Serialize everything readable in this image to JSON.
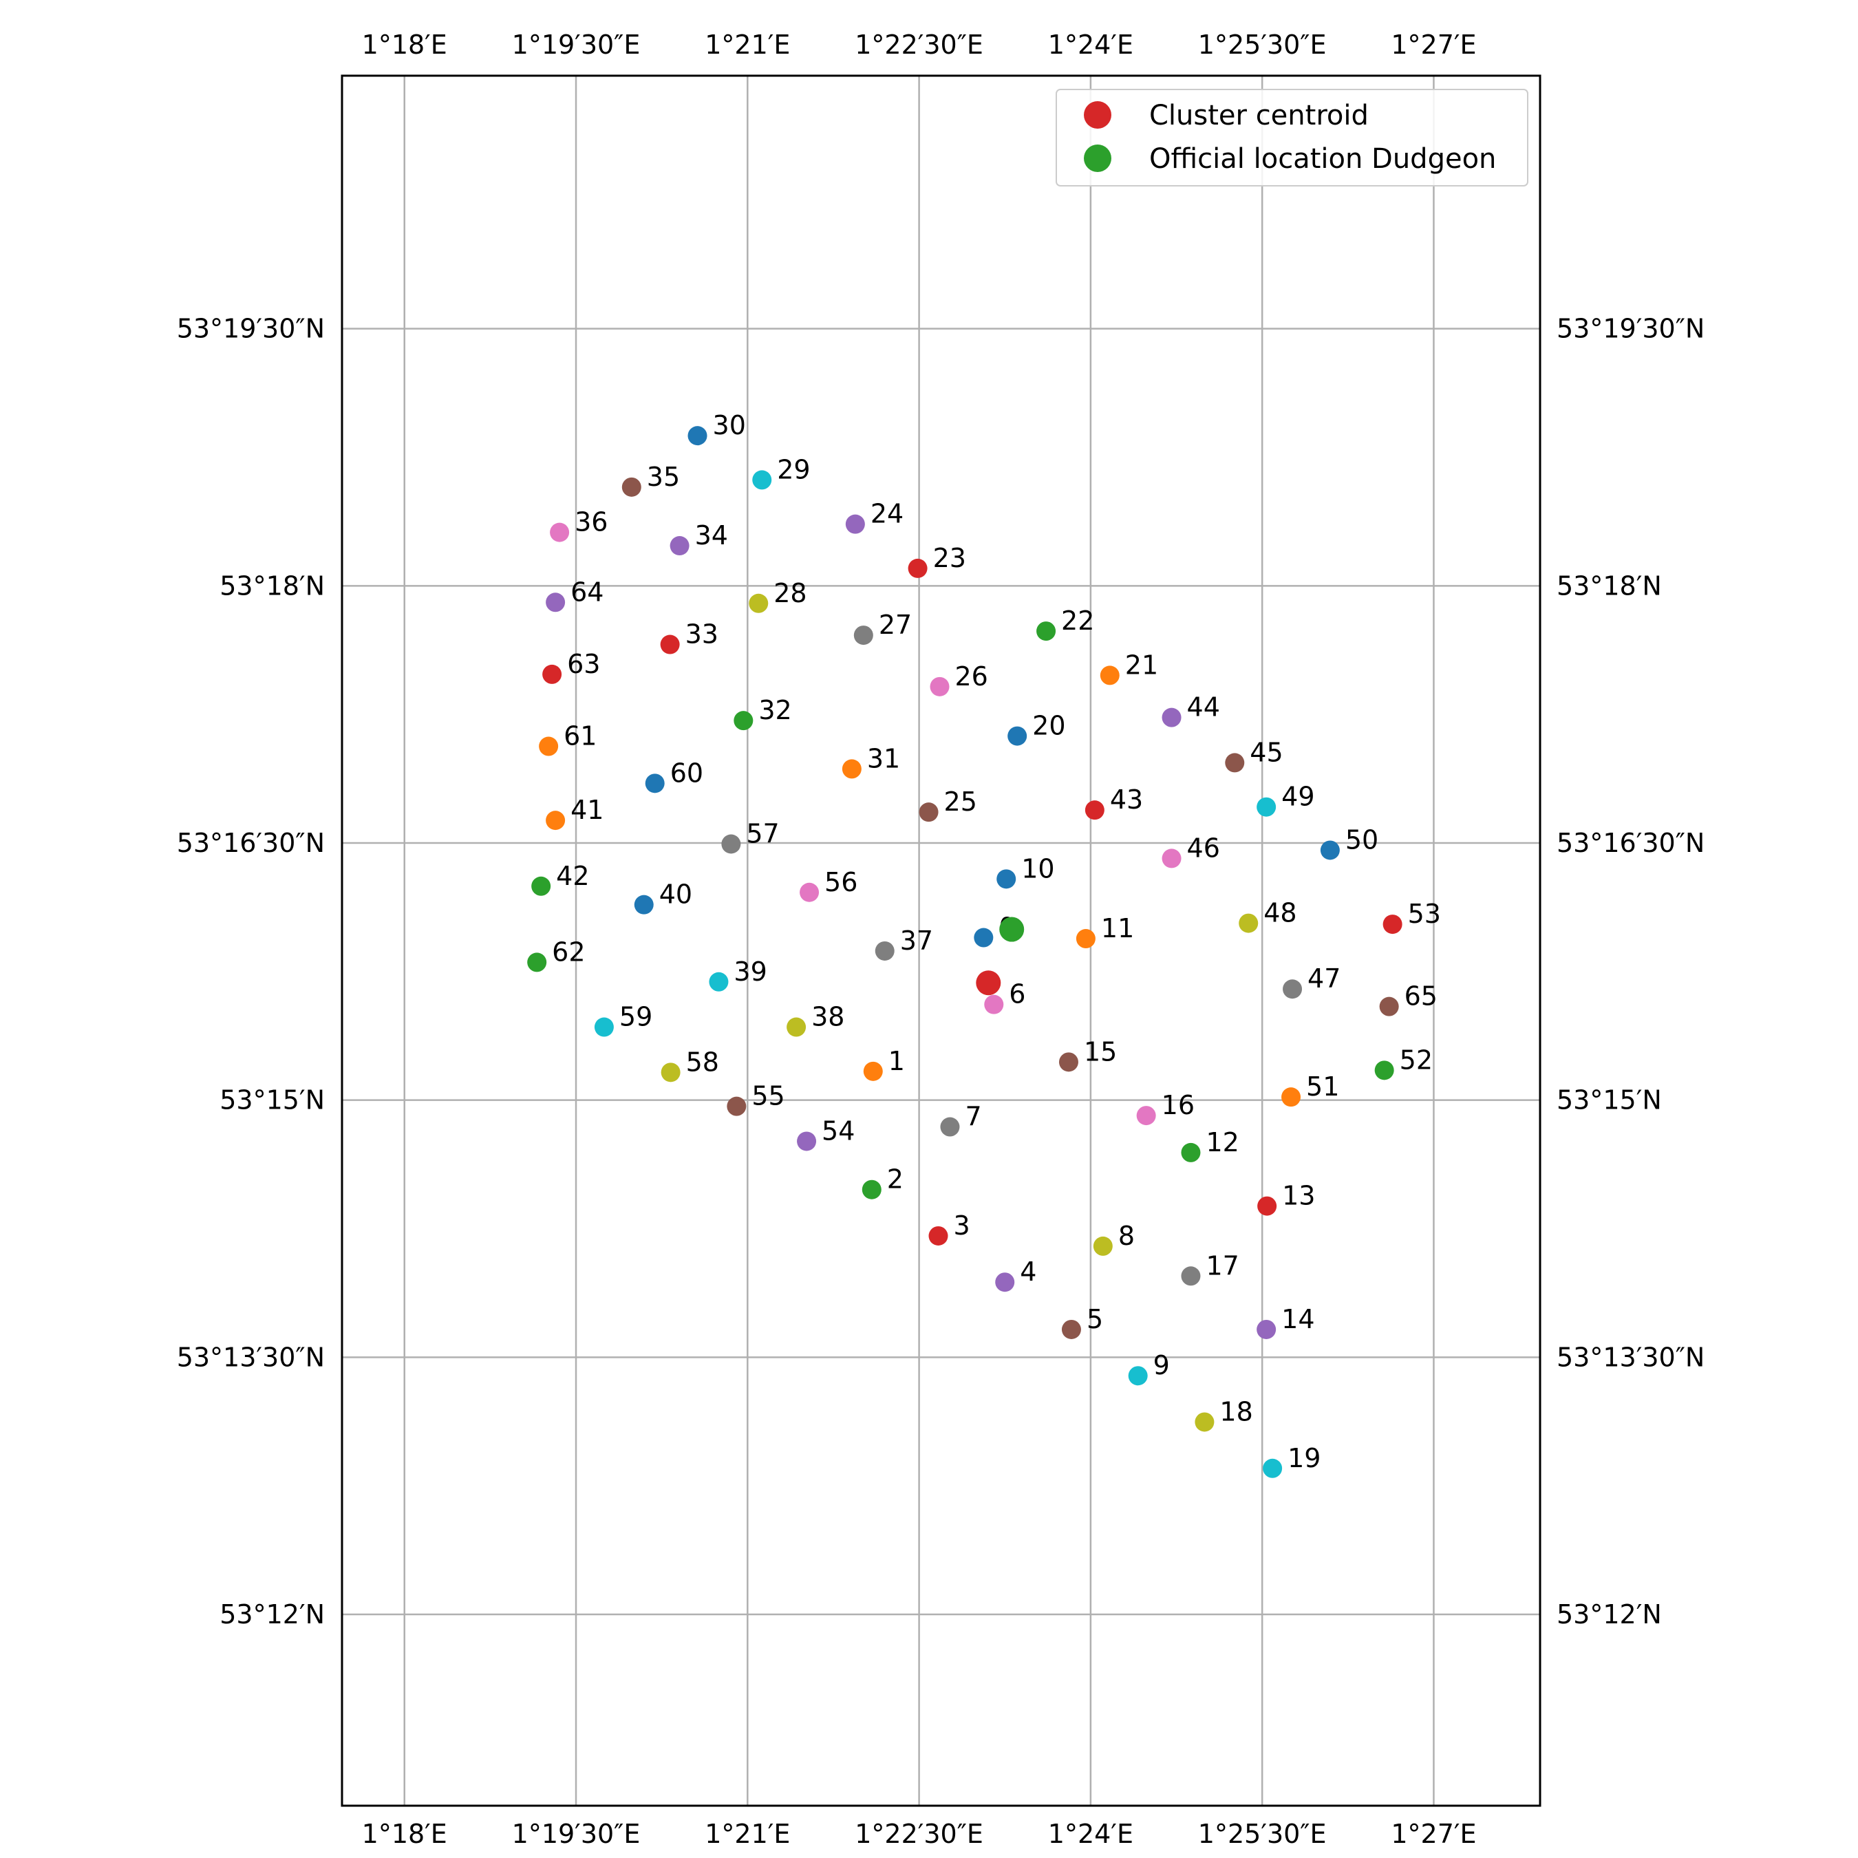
{
  "chart_data": {
    "type": "scatter",
    "xlim": [
      1.2909,
      1.4655
    ],
    "ylim": [
      53.1814,
      53.3496
    ],
    "grid": true,
    "x_ticks": [
      {
        "value": 1.3,
        "label": "1°18′E"
      },
      {
        "value": 1.325,
        "label": "1°19′30″E"
      },
      {
        "value": 1.35,
        "label": "1°21′E"
      },
      {
        "value": 1.375,
        "label": "1°22′30″E"
      },
      {
        "value": 1.4,
        "label": "1°24′E"
      },
      {
        "value": 1.425,
        "label": "1°25′30″E"
      },
      {
        "value": 1.45,
        "label": "1°27′E"
      }
    ],
    "y_ticks": [
      {
        "value": 53.2,
        "label": "53°12′N"
      },
      {
        "value": 53.225,
        "label": "53°13′30″N"
      },
      {
        "value": 53.25,
        "label": "53°15′N"
      },
      {
        "value": 53.275,
        "label": "53°16′30″N"
      },
      {
        "value": 53.3,
        "label": "53°18′N"
      },
      {
        "value": 53.325,
        "label": "53°19′30″N"
      }
    ],
    "legend": {
      "position": "top-right",
      "entries": [
        {
          "label": "Cluster centroid",
          "color": "#d62728"
        },
        {
          "label": "Official location Dudgeon",
          "color": "#2ca02c"
        }
      ]
    },
    "centroid": {
      "x": 1.3851,
      "y": 53.2614,
      "color": "#d62728"
    },
    "official_location": {
      "x": 1.3885,
      "y": 53.2666,
      "color": "#2ca02c"
    },
    "palette": [
      "#1f77b4",
      "#ff7f0e",
      "#2ca02c",
      "#d62728",
      "#9467bd",
      "#8c564b",
      "#e377c2",
      "#7f7f7f",
      "#bcbd22",
      "#17becf"
    ],
    "points": [
      {
        "id": "0",
        "x": 1.3844,
        "y": 53.2658
      },
      {
        "id": "1",
        "x": 1.3683,
        "y": 53.2528
      },
      {
        "id": "2",
        "x": 1.3681,
        "y": 53.2413
      },
      {
        "id": "3",
        "x": 1.3778,
        "y": 53.2368
      },
      {
        "id": "4",
        "x": 1.3875,
        "y": 53.2323
      },
      {
        "id": "5",
        "x": 1.3972,
        "y": 53.2277
      },
      {
        "id": "6",
        "x": 1.3859,
        "y": 53.2593
      },
      {
        "id": "7",
        "x": 1.3795,
        "y": 53.2474
      },
      {
        "id": "8",
        "x": 1.4018,
        "y": 53.2358
      },
      {
        "id": "9",
        "x": 1.4069,
        "y": 53.2232
      },
      {
        "id": "10",
        "x": 1.3877,
        "y": 53.2715
      },
      {
        "id": "11",
        "x": 1.3993,
        "y": 53.2657
      },
      {
        "id": "12",
        "x": 1.4146,
        "y": 53.2449
      },
      {
        "id": "13",
        "x": 1.4257,
        "y": 53.2397
      },
      {
        "id": "14",
        "x": 1.4256,
        "y": 53.2277
      },
      {
        "id": "15",
        "x": 1.3968,
        "y": 53.2537
      },
      {
        "id": "16",
        "x": 1.4081,
        "y": 53.2485
      },
      {
        "id": "17",
        "x": 1.4146,
        "y": 53.2329
      },
      {
        "id": "18",
        "x": 1.4166,
        "y": 53.2187
      },
      {
        "id": "19",
        "x": 1.4265,
        "y": 53.2142
      },
      {
        "id": "20",
        "x": 1.3893,
        "y": 53.2854
      },
      {
        "id": "21",
        "x": 1.4028,
        "y": 53.2913
      },
      {
        "id": "22",
        "x": 1.3935,
        "y": 53.2956
      },
      {
        "id": "23",
        "x": 1.3748,
        "y": 53.3017
      },
      {
        "id": "24",
        "x": 1.3657,
        "y": 53.306
      },
      {
        "id": "25",
        "x": 1.3764,
        "y": 53.278
      },
      {
        "id": "26",
        "x": 1.378,
        "y": 53.2902
      },
      {
        "id": "27",
        "x": 1.3669,
        "y": 53.2952
      },
      {
        "id": "28",
        "x": 1.3516,
        "y": 53.2983
      },
      {
        "id": "29",
        "x": 1.3521,
        "y": 53.3103
      },
      {
        "id": "30",
        "x": 1.3427,
        "y": 53.3146
      },
      {
        "id": "31",
        "x": 1.3652,
        "y": 53.2822
      },
      {
        "id": "32",
        "x": 1.3494,
        "y": 53.2869
      },
      {
        "id": "33",
        "x": 1.3387,
        "y": 53.2943
      },
      {
        "id": "34",
        "x": 1.3401,
        "y": 53.3039
      },
      {
        "id": "35",
        "x": 1.3331,
        "y": 53.3096
      },
      {
        "id": "36",
        "x": 1.3226,
        "y": 53.3052
      },
      {
        "id": "37",
        "x": 1.37,
        "y": 53.2645
      },
      {
        "id": "38",
        "x": 1.3571,
        "y": 53.2571
      },
      {
        "id": "39",
        "x": 1.3458,
        "y": 53.2615
      },
      {
        "id": "40",
        "x": 1.3349,
        "y": 53.269
      },
      {
        "id": "41",
        "x": 1.322,
        "y": 53.2772
      },
      {
        "id": "42",
        "x": 1.3199,
        "y": 53.2708
      },
      {
        "id": "43",
        "x": 1.4006,
        "y": 53.2782
      },
      {
        "id": "44",
        "x": 1.4118,
        "y": 53.2872
      },
      {
        "id": "45",
        "x": 1.421,
        "y": 53.2828
      },
      {
        "id": "46",
        "x": 1.4118,
        "y": 53.2735
      },
      {
        "id": "47",
        "x": 1.4294,
        "y": 53.2608
      },
      {
        "id": "48",
        "x": 1.423,
        "y": 53.2672
      },
      {
        "id": "49",
        "x": 1.4256,
        "y": 53.2785
      },
      {
        "id": "50",
        "x": 1.4349,
        "y": 53.2743
      },
      {
        "id": "51",
        "x": 1.4292,
        "y": 53.2503
      },
      {
        "id": "52",
        "x": 1.4428,
        "y": 53.2529
      },
      {
        "id": "53",
        "x": 1.444,
        "y": 53.2671
      },
      {
        "id": "54",
        "x": 1.3586,
        "y": 53.246
      },
      {
        "id": "55",
        "x": 1.3484,
        "y": 53.2494
      },
      {
        "id": "56",
        "x": 1.359,
        "y": 53.2702
      },
      {
        "id": "57",
        "x": 1.3476,
        "y": 53.2749
      },
      {
        "id": "58",
        "x": 1.3388,
        "y": 53.2527
      },
      {
        "id": "59",
        "x": 1.3291,
        "y": 53.2571
      },
      {
        "id": "60",
        "x": 1.3365,
        "y": 53.2808
      },
      {
        "id": "61",
        "x": 1.321,
        "y": 53.2844
      },
      {
        "id": "62",
        "x": 1.3193,
        "y": 53.2634
      },
      {
        "id": "63",
        "x": 1.3215,
        "y": 53.2914
      },
      {
        "id": "64",
        "x": 1.322,
        "y": 53.2984
      },
      {
        "id": "65",
        "x": 1.4435,
        "y": 53.2591
      }
    ]
  }
}
